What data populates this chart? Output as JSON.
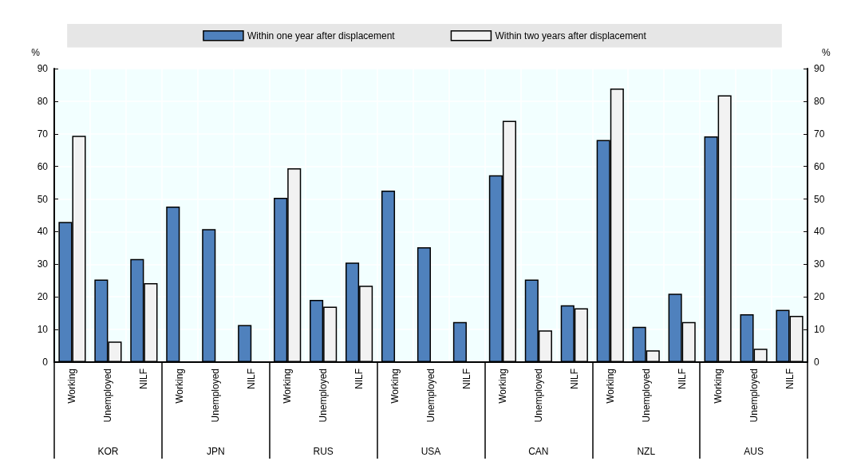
{
  "chart_data": {
    "type": "bar",
    "categories": [
      "Working",
      "Unemployed",
      "NILF",
      "Working",
      "Unemployed",
      "NILF",
      "Working",
      "Unemployed",
      "NILF",
      "Working",
      "Unemployed",
      "NILF",
      "Working",
      "Unemployed",
      "NILF",
      "Working",
      "Unemployed",
      "NILF",
      "Working",
      "Unemployed",
      "NILF"
    ],
    "annotations": [
      "KOR",
      "JPN",
      "RUS",
      "USA",
      "CAN",
      "NZL",
      "AUS"
    ],
    "series": [
      {
        "name": "Within one year after displacement",
        "color": "#4f81bd",
        "values": [
          43,
          25.3,
          31.6,
          47.7,
          40.8,
          11.4,
          50.4,
          19.1,
          30.5,
          52.6,
          35.2,
          12.3,
          57.3,
          25.3,
          17.4,
          68.1,
          10.8,
          21.0,
          69.2,
          14.7,
          16.0
        ]
      },
      {
        "name": "Within two years after displacement",
        "color": "#f2f2f2",
        "values": [
          69.4,
          6.3,
          24.2,
          null,
          null,
          null,
          59.4,
          17.0,
          23.4,
          null,
          null,
          null,
          74.0,
          9.7,
          16.5,
          83.9,
          3.6,
          12.3,
          81.8,
          4.1,
          14.2
        ]
      }
    ],
    "ylabel": "%",
    "y2label": "%",
    "ylim": [
      0,
      90
    ],
    "yticks": [
      0,
      10,
      20,
      30,
      40,
      50,
      60,
      70,
      80,
      90
    ],
    "y2lim": [
      0,
      90
    ],
    "y2ticks": [
      0,
      10,
      20,
      30,
      40,
      50,
      60,
      70,
      80,
      90
    ],
    "grid": true,
    "legend": "top"
  }
}
